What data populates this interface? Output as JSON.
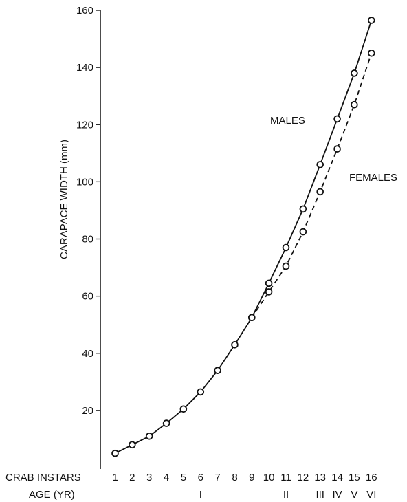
{
  "chart_data": {
    "type": "line",
    "ylabel": "CARAPACE WIDTH (mm)",
    "ylim": [
      0,
      160
    ],
    "yticks": [
      20,
      40,
      60,
      80,
      100,
      120,
      140,
      160
    ],
    "x_row_label": "CRAB INSTARS",
    "x": [
      1,
      2,
      3,
      4,
      5,
      6,
      7,
      8,
      9,
      10,
      11,
      12,
      13,
      14,
      15,
      16
    ],
    "x_tick_labels": [
      "1",
      "2",
      "3",
      "4",
      "5",
      "6",
      "7",
      "8",
      "9",
      "10",
      "11",
      "12",
      "13",
      "14",
      "15",
      "16"
    ],
    "age_row_label": "AGE (YR)",
    "age_labels": [
      {
        "instar": 6,
        "label": "I"
      },
      {
        "instar": 11,
        "label": "II"
      },
      {
        "instar": 13,
        "label": "III"
      },
      {
        "instar": 14,
        "label": "IV"
      },
      {
        "instar": 15,
        "label": "V"
      },
      {
        "instar": 16,
        "label": "VI"
      }
    ],
    "grid": false,
    "series": [
      {
        "name": "MALES",
        "line_style": "solid",
        "x": [
          1,
          2,
          3,
          4,
          5,
          6,
          7,
          8,
          9,
          10,
          11,
          12,
          13,
          14,
          15,
          16
        ],
        "values": [
          5,
          8,
          11,
          15.5,
          20.5,
          26.5,
          34,
          43,
          52.5,
          64.5,
          77,
          90.5,
          106,
          122,
          138,
          156.5
        ]
      },
      {
        "name": "FEMALES",
        "line_style": "dashed",
        "x": [
          9,
          10,
          11,
          12,
          13,
          14,
          15,
          16
        ],
        "values": [
          52.5,
          61.5,
          70.5,
          82.5,
          96.5,
          111.5,
          127,
          145
        ]
      }
    ]
  }
}
